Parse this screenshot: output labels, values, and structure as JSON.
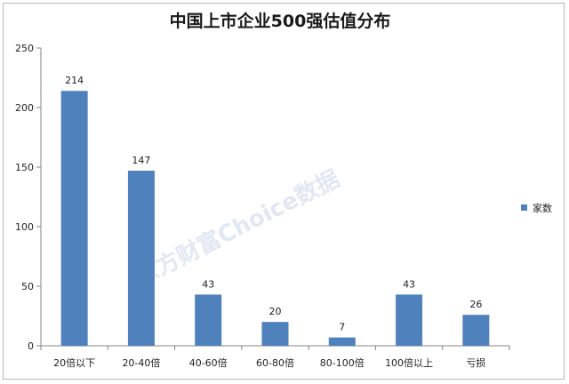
{
  "chart_data": {
    "type": "bar",
    "title": "中国上市企业500强估值分布",
    "categories": [
      "20倍以下",
      "20-40倍",
      "40-60倍",
      "60-80倍",
      "80-100倍",
      "100倍以上",
      "亏损"
    ],
    "series": [
      {
        "name": "家数",
        "values": [
          214,
          147,
          43,
          20,
          7,
          43,
          26
        ]
      }
    ],
    "data_labels": [
      "214",
      "147",
      "43",
      "20",
      "7",
      "43",
      "26"
    ],
    "yticks": [
      0,
      50,
      100,
      150,
      200,
      250
    ],
    "ylim": [
      0,
      250
    ],
    "xlabel": "",
    "ylabel": "",
    "grid": false,
    "legend": "right",
    "bar_color": "#4f81bd"
  },
  "watermark": "东方财富Choice数据"
}
